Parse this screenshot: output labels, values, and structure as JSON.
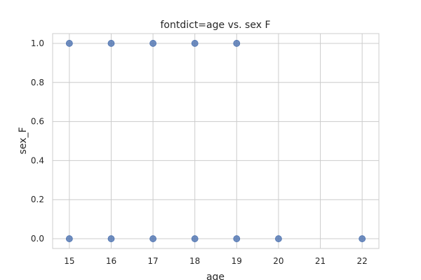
{
  "chart_data": {
    "type": "scatter",
    "title": "fontdict=age vs. sex F",
    "xlabel": "age",
    "ylabel": "sex_F",
    "xlim": [
      14.6,
      22.4
    ],
    "ylim": [
      -0.05,
      1.05
    ],
    "x_ticks": [
      15,
      16,
      17,
      18,
      19,
      20,
      21,
      22
    ],
    "y_ticks": [
      0.0,
      0.2,
      0.4,
      0.6,
      0.8,
      1.0
    ],
    "y_tick_labels": [
      "0.0",
      "0.2",
      "0.4",
      "0.6",
      "0.8",
      "1.0"
    ],
    "grid": true,
    "point_color": "#4c72b0",
    "points": [
      {
        "x": 15,
        "y": 1
      },
      {
        "x": 16,
        "y": 1
      },
      {
        "x": 17,
        "y": 1
      },
      {
        "x": 18,
        "y": 1
      },
      {
        "x": 19,
        "y": 1
      },
      {
        "x": 15,
        "y": 0
      },
      {
        "x": 16,
        "y": 0
      },
      {
        "x": 17,
        "y": 0
      },
      {
        "x": 18,
        "y": 0
      },
      {
        "x": 19,
        "y": 0
      },
      {
        "x": 20,
        "y": 0
      },
      {
        "x": 22,
        "y": 0
      }
    ]
  }
}
